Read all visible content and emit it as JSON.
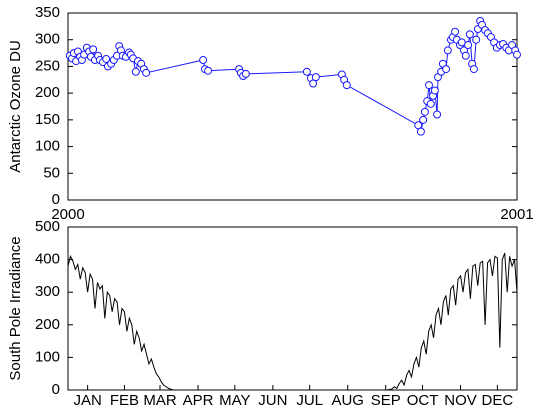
{
  "chart_data": [
    {
      "type": "line",
      "ylabel": "Antarctic Ozone DU",
      "color": "#1a1aff",
      "markers": true,
      "xlim": [
        2000,
        2001
      ],
      "xticks": [
        2000,
        2001
      ],
      "ylim": [
        0,
        350
      ],
      "yticks": [
        0,
        50,
        100,
        150,
        200,
        250,
        300,
        350
      ],
      "x": [
        2000.004,
        2000.009,
        2000.013,
        2000.018,
        2000.022,
        2000.027,
        2000.031,
        2000.036,
        2000.042,
        2000.047,
        2000.051,
        2000.056,
        2000.06,
        2000.067,
        2000.071,
        2000.078,
        2000.085,
        2000.089,
        2000.096,
        2000.102,
        2000.109,
        2000.114,
        2000.118,
        2000.122,
        2000.129,
        2000.136,
        2000.14,
        2000.145,
        2000.151,
        2000.156,
        2000.163,
        2000.169,
        2000.174,
        2000.301,
        2000.305,
        2000.312,
        2000.381,
        2000.385,
        2000.39,
        2000.396,
        2000.532,
        2000.541,
        2000.546,
        2000.552,
        2000.61,
        2000.615,
        2000.621,
        2000.78,
        2000.786,
        2000.791,
        2000.795,
        2000.8,
        2000.804,
        2000.808,
        2000.813,
        2000.817,
        2000.822,
        2000.824,
        2000.831,
        2000.835,
        2000.842,
        2000.846,
        2000.853,
        2000.857,
        2000.862,
        2000.866,
        2000.873,
        2000.877,
        2000.882,
        2000.886,
        2000.891,
        2000.895,
        2000.9,
        2000.904,
        2000.909,
        2000.913,
        2000.918,
        2000.922,
        2000.929,
        2000.935,
        2000.942,
        2000.949,
        2000.955,
        2000.962,
        2000.969,
        2000.976,
        2000.982,
        2000.989,
        2000.996,
        2001.0
      ],
      "values": [
        270,
        265,
        275,
        260,
        278,
        268,
        262,
        272,
        285,
        278,
        268,
        282,
        262,
        270,
        262,
        258,
        264,
        250,
        255,
        262,
        270,
        288,
        280,
        270,
        268,
        276,
        272,
        265,
        240,
        260,
        255,
        245,
        238,
        262,
        245,
        242,
        245,
        238,
        232,
        236,
        240,
        228,
        218,
        230,
        235,
        225,
        215,
        140,
        128,
        150,
        165,
        185,
        215,
        180,
        195,
        205,
        160,
        230,
        240,
        255,
        245,
        280,
        300,
        305,
        315,
        300,
        290,
        295,
        280,
        270,
        290,
        310,
        255,
        245,
        300,
        320,
        335,
        328,
        318,
        312,
        305,
        295,
        285,
        290,
        292,
        285,
        280,
        290,
        280,
        272
      ]
    },
    {
      "type": "line",
      "ylabel": "South Pole Irradiance",
      "color": "#000000",
      "markers": false,
      "xlim": [
        0,
        366
      ],
      "xticks": [
        {
          "value": 16,
          "label": "JAN"
        },
        {
          "value": 46,
          "label": "FEB"
        },
        {
          "value": 75,
          "label": "MAR"
        },
        {
          "value": 106,
          "label": "APR"
        },
        {
          "value": 136,
          "label": "MAY"
        },
        {
          "value": 167,
          "label": "JUN"
        },
        {
          "value": 197,
          "label": "JUL"
        },
        {
          "value": 228,
          "label": "AUG"
        },
        {
          "value": 259,
          "label": "SEP"
        },
        {
          "value": 289,
          "label": "OCT"
        },
        {
          "value": 320,
          "label": "NOV"
        },
        {
          "value": 350,
          "label": "DEC"
        }
      ],
      "ylim": [
        0,
        500
      ],
      "yticks": [
        0,
        100,
        200,
        300,
        400,
        500
      ],
      "x": [
        0,
        2,
        4,
        6,
        8,
        10,
        12,
        14,
        16,
        18,
        20,
        22,
        24,
        26,
        28,
        30,
        32,
        34,
        36,
        38,
        40,
        42,
        44,
        46,
        48,
        50,
        52,
        54,
        56,
        58,
        60,
        62,
        64,
        66,
        68,
        70,
        72,
        74,
        76,
        78,
        80,
        82,
        84,
        86,
        100,
        120,
        200,
        260,
        264,
        266,
        268,
        270,
        272,
        274,
        276,
        278,
        280,
        282,
        284,
        286,
        288,
        290,
        292,
        294,
        296,
        298,
        300,
        302,
        304,
        306,
        308,
        310,
        312,
        314,
        316,
        318,
        320,
        322,
        324,
        326,
        328,
        330,
        332,
        334,
        336,
        338,
        340,
        342,
        344,
        346,
        348,
        350,
        352,
        354,
        356,
        358,
        360,
        362,
        364,
        366
      ],
      "values": [
        380,
        410,
        395,
        370,
        385,
        340,
        375,
        360,
        300,
        355,
        340,
        250,
        330,
        310,
        320,
        220,
        300,
        290,
        240,
        280,
        270,
        200,
        250,
        240,
        180,
        220,
        200,
        140,
        180,
        160,
        120,
        140,
        110,
        80,
        95,
        70,
        50,
        40,
        25,
        15,
        10,
        5,
        2,
        0,
        0,
        0,
        0,
        0,
        3,
        10,
        5,
        20,
        30,
        15,
        45,
        60,
        40,
        80,
        100,
        70,
        130,
        150,
        110,
        180,
        200,
        160,
        230,
        250,
        200,
        270,
        290,
        230,
        310,
        320,
        260,
        340,
        350,
        300,
        360,
        370,
        280,
        380,
        385,
        320,
        390,
        395,
        200,
        390,
        400,
        350,
        410,
        405,
        130,
        400,
        420,
        300,
        410,
        380,
        400,
        300
      ]
    }
  ]
}
